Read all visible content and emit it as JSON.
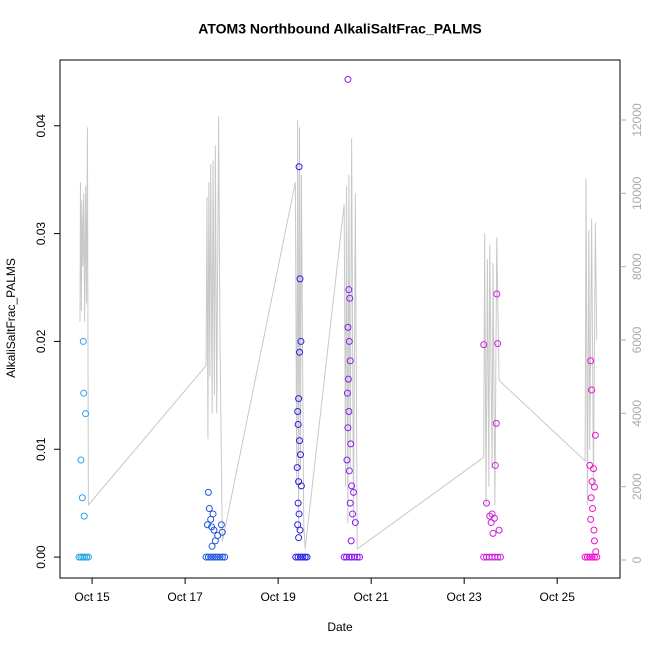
{
  "chart_data": {
    "type": "scatter",
    "title": "ATOM3 Northbound AlkaliSaltFrac_PALMS",
    "x_label": "Date",
    "y_label": "AlkaliSaltFrac_PALMS",
    "xlim": [
      14.31,
      26.35
    ],
    "ylim": [
      -0.00194,
      0.0461
    ],
    "y2lim": [
      -491,
      13636
    ],
    "xticks": [
      {
        "value": 15,
        "label": "Oct 15"
      },
      {
        "value": 17,
        "label": "Oct 17"
      },
      {
        "value": 19,
        "label": "Oct 19"
      },
      {
        "value": 21,
        "label": "Oct 21"
      },
      {
        "value": 23,
        "label": "Oct 23"
      },
      {
        "value": 25,
        "label": "Oct 25"
      }
    ],
    "yticks": [
      {
        "value": 0,
        "label": "0.00"
      },
      {
        "value": 0.01,
        "label": "0.01"
      },
      {
        "value": 0.02,
        "label": "0.02"
      },
      {
        "value": 0.03,
        "label": "0.03"
      },
      {
        "value": 0.04,
        "label": "0.04"
      }
    ],
    "y2ticks": [
      0,
      2000,
      4000,
      6000,
      8000,
      10000,
      12000
    ],
    "series": [
      {
        "color": "#29a3e6",
        "x": [
          14.72,
          14.76,
          14.8,
          14.84,
          14.88,
          14.92,
          14.76,
          14.79,
          14.81,
          14.82,
          14.86,
          14.83
        ],
        "values": [
          0,
          0,
          0,
          0,
          0,
          0,
          0.009,
          0.0055,
          0.02,
          0.0152,
          0.0133,
          0.0038
        ]
      },
      {
        "color": "#2255dd",
        "x": [
          17.45,
          17.5,
          17.55,
          17.6,
          17.65,
          17.7,
          17.75,
          17.8,
          17.85,
          17.5,
          17.52,
          17.55,
          17.48,
          17.6,
          17.62,
          17.58,
          17.65,
          17.7,
          17.78,
          17.8,
          17.57
        ],
        "values": [
          0,
          0,
          0,
          0,
          0,
          0,
          0,
          0,
          0,
          0.006,
          0.0045,
          0.0035,
          0.003,
          0.004,
          0.0025,
          0.001,
          0.0015,
          0.002,
          0.003,
          0.0023,
          0.0028
        ]
      },
      {
        "color": "#2a1fe0",
        "x": [
          19.38,
          19.43,
          19.48,
          19.53,
          19.58,
          19.62,
          19.45,
          19.47,
          19.49,
          19.46,
          19.44,
          19.42,
          19.43,
          19.46,
          19.48,
          19.41,
          19.44,
          19.5,
          19.43,
          19.45,
          19.42,
          19.47,
          19.44
        ],
        "values": [
          0,
          0,
          0,
          0,
          0,
          0,
          0.0362,
          0.0258,
          0.02,
          0.019,
          0.0147,
          0.0135,
          0.0123,
          0.0108,
          0.0095,
          0.0083,
          0.007,
          0.0066,
          0.005,
          0.004,
          0.003,
          0.0025,
          0.0018
        ]
      },
      {
        "color": "#8a1cf0",
        "x": [
          20.42,
          20.47,
          20.53,
          20.58,
          20.64,
          20.7,
          20.75,
          20.5,
          20.52,
          20.54,
          20.5,
          20.53,
          20.55,
          20.51,
          20.49,
          20.52,
          20.5,
          20.56,
          20.48,
          20.53,
          20.58,
          20.62,
          20.55,
          20.6,
          20.66,
          20.57
        ],
        "values": [
          0,
          0,
          0,
          0,
          0,
          0,
          0,
          0.0443,
          0.0248,
          0.024,
          0.0213,
          0.02,
          0.0182,
          0.0165,
          0.0152,
          0.0135,
          0.012,
          0.0105,
          0.009,
          0.008,
          0.0066,
          0.006,
          0.005,
          0.004,
          0.0032,
          0.0015
        ]
      },
      {
        "color": "#cc22dd",
        "x": [
          23.42,
          23.48,
          23.54,
          23.6,
          23.66,
          23.72,
          23.78,
          23.42,
          23.7,
          23.72,
          23.69,
          23.67,
          23.48,
          23.6,
          23.65,
          23.55,
          23.75,
          23.58,
          23.62
        ],
        "values": [
          0,
          0,
          0,
          0,
          0,
          0,
          0,
          0.0197,
          0.0244,
          0.0198,
          0.0124,
          0.0085,
          0.005,
          0.004,
          0.0036,
          0.0038,
          0.0025,
          0.0032,
          0.0022
        ]
      },
      {
        "color": "#ee11cc",
        "x": [
          25.6,
          25.65,
          25.7,
          25.75,
          25.8,
          25.85,
          25.72,
          25.74,
          25.82,
          25.7,
          25.78,
          25.75,
          25.8,
          25.73,
          25.76,
          25.72,
          25.79,
          25.8,
          25.83
        ],
        "values": [
          0,
          0,
          0,
          0,
          0,
          0,
          0.0182,
          0.0155,
          0.0113,
          0.0085,
          0.0082,
          0.007,
          0.0065,
          0.0055,
          0.0045,
          0.0035,
          0.0025,
          0.0015,
          0.0005
        ]
      },
      {
        "type": "line",
        "axis": "y2",
        "color": "#c8c8c8",
        "x": [
          14.74,
          14.75,
          14.77,
          14.78,
          14.8,
          14.82,
          14.84,
          14.86,
          14.88,
          14.9,
          14.92,
          17.45,
          17.47,
          17.49,
          17.51,
          17.53,
          17.55,
          17.58,
          17.6,
          17.63,
          17.65,
          17.68,
          17.72,
          17.75,
          17.8,
          19.37,
          19.4,
          19.42,
          19.44,
          19.46,
          19.48,
          19.5,
          19.55,
          19.58,
          20.42,
          20.45,
          20.47,
          20.5,
          20.52,
          20.55,
          20.58,
          20.62,
          20.66,
          20.7,
          23.42,
          23.44,
          23.47,
          23.5,
          23.53,
          23.55,
          23.6,
          23.62,
          23.66,
          23.7,
          23.75,
          25.6,
          25.62,
          25.65,
          25.68,
          25.7,
          25.74,
          25.78,
          25.82,
          25.85
        ],
        "values": [
          6500,
          10300,
          6800,
          9800,
          8000,
          10000,
          6500,
          10200,
          7000,
          11800,
          1500,
          5300,
          9900,
          3300,
          10300,
          5000,
          10800,
          4000,
          10900,
          4500,
          11300,
          4000,
          12100,
          6000,
          500,
          10300,
          2000,
          12000,
          800,
          11800,
          2500,
          10500,
          1000,
          300,
          9700,
          2000,
          10200,
          1000,
          10500,
          2500,
          11500,
          1000,
          10000,
          300,
          2800,
          8900,
          1500,
          8200,
          2000,
          8600,
          2500,
          8100,
          1500,
          8800,
          4900,
          2700,
          10400,
          1500,
          9000,
          3000,
          9300,
          2000,
          9200,
          6000
        ]
      }
    ]
  }
}
